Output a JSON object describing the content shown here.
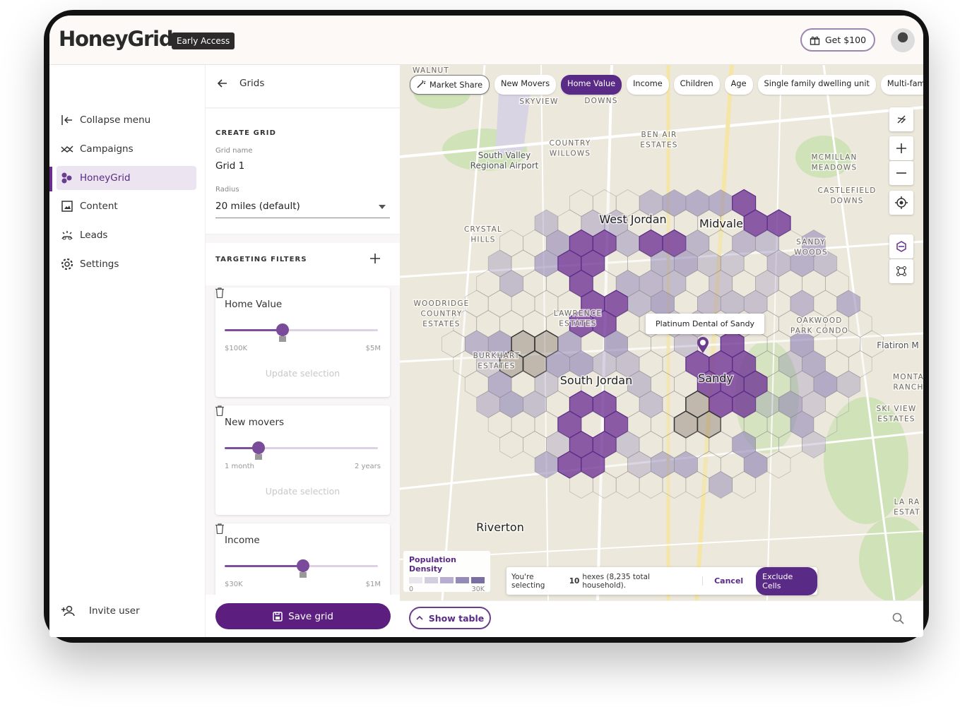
{
  "header": {
    "logo": "HoneyGrid",
    "badge": "Early Access",
    "reward_button": "Get $100"
  },
  "sidebar": {
    "items": [
      {
        "label": "Collapse menu",
        "selected": false
      },
      {
        "label": "Campaigns",
        "selected": false
      },
      {
        "label": "HoneyGrid",
        "selected": true
      },
      {
        "label": "Content",
        "selected": false
      },
      {
        "label": "Leads",
        "selected": false
      },
      {
        "label": "Settings",
        "selected": false
      }
    ],
    "invite": "Invite user"
  },
  "panel": {
    "back": "Grids",
    "create_grid": {
      "heading": "CREATE GRID",
      "name_label": "Grid name",
      "name_value": "Grid 1",
      "radius_label": "Radius",
      "radius_value": "20 miles (default)"
    },
    "targeting_heading": "TARGETING FILTERS",
    "filters": [
      {
        "name": "Home Value",
        "min": "$100K",
        "max": "$5M",
        "action": "Update selection"
      },
      {
        "name": "New movers",
        "min": "1 month",
        "max": "2 years",
        "action": "Update selection"
      },
      {
        "name": "Income",
        "min": "$30K",
        "max": "$1M"
      }
    ],
    "save": "Save grid"
  },
  "map": {
    "chips": [
      {
        "label": "Market Share",
        "selected": false
      },
      {
        "label": "New Movers",
        "selected": false
      },
      {
        "label": "Home Value",
        "selected": true
      },
      {
        "label": "Income",
        "selected": false
      },
      {
        "label": "Children",
        "selected": false
      },
      {
        "label": "Age",
        "selected": false
      },
      {
        "label": "Single family dwelling unit",
        "selected": false
      },
      {
        "label": "Multi-family dwelling unit",
        "selected": false
      }
    ],
    "places": [
      {
        "lines": [
          "WALNUT"
        ],
        "style": "small"
      },
      {
        "lines": [
          "SKYVIEW"
        ],
        "style": "small"
      },
      {
        "lines": [
          "DOWNS"
        ],
        "style": "small"
      },
      {
        "lines": [
          "South Valley",
          "Regional Airport"
        ],
        "style": "medium"
      },
      {
        "lines": [
          "COUNTRY",
          "WILLOWS"
        ],
        "style": "small"
      },
      {
        "lines": [
          "BEN AIR",
          "ESTATES"
        ],
        "style": "small"
      },
      {
        "lines": [
          "MCMILLAN",
          "MEADOWS"
        ],
        "style": "small"
      },
      {
        "lines": [
          "CASTLEFIELD",
          "DOWNS"
        ],
        "style": "small"
      },
      {
        "lines": [
          "West Jordan"
        ],
        "style": "city"
      },
      {
        "lines": [
          "Midvale"
        ],
        "style": "city"
      },
      {
        "lines": [
          "CRYSTAL",
          "HILLS"
        ],
        "style": "small"
      },
      {
        "lines": [
          "SANDY",
          "WOODS"
        ],
        "style": "small"
      },
      {
        "lines": [
          "WOODRIDGE",
          "COUNTRY",
          "ESTATES"
        ],
        "style": "small"
      },
      {
        "lines": [
          "LAWRENCE",
          "ESTATES"
        ],
        "style": "small"
      },
      {
        "lines": [
          "OAKWOOD",
          "PARK CONDO"
        ],
        "style": "small"
      },
      {
        "lines": [
          "BURKHART",
          "ESTATES"
        ],
        "style": "small"
      },
      {
        "lines": [
          "South Jordan"
        ],
        "style": "city"
      },
      {
        "lines": [
          "Sandy"
        ],
        "style": "city"
      },
      {
        "lines": [
          "MONTA",
          "RANCH"
        ],
        "style": "small"
      },
      {
        "lines": [
          "SKI VIEW",
          "ESTATES"
        ],
        "style": "small"
      },
      {
        "lines": [
          "Riverton"
        ],
        "style": "city"
      },
      {
        "lines": [
          "Flatiron M"
        ],
        "style": "medium"
      },
      {
        "lines": [
          "LA RA",
          "ESTAT"
        ],
        "style": "small"
      }
    ],
    "tooltip": "Platinum Dental of Sandy",
    "legend": {
      "title": "Population Density",
      "min": "0",
      "max": "30K"
    },
    "selection": {
      "prefix": "You're selecting",
      "count": "10",
      "suffix": "hexes (8,235 total household).",
      "cancel": "Cancel",
      "exclude": "Exclude Cells"
    }
  },
  "footer": {
    "show_table": "Show table"
  }
}
